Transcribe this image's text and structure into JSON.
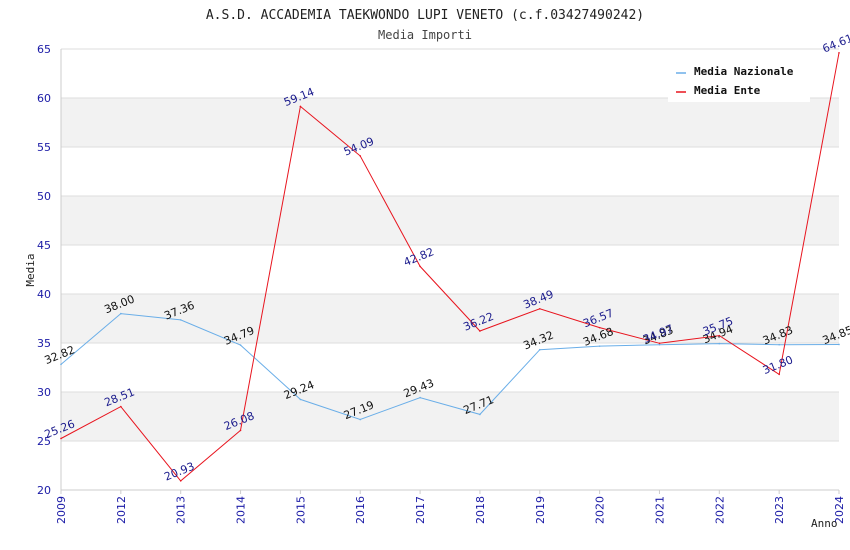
{
  "chart_data": {
    "type": "line",
    "title": "A.S.D. ACCADEMIA TAEKWONDO LUPI VENETO (c.f.03427490242)",
    "subtitle": "Media Importi",
    "xlabel": "Anno",
    "ylabel": "Media",
    "ylim": [
      20,
      65
    ],
    "yticks": [
      "20",
      "25",
      "30",
      "35",
      "40",
      "45",
      "50",
      "55",
      "60",
      "65"
    ],
    "categories": [
      "2009",
      "2012",
      "2013",
      "2014",
      "2015",
      "2016",
      "2017",
      "2018",
      "2019",
      "2020",
      "2021",
      "2022",
      "2023",
      "2024"
    ],
    "grid": "horizontal, alternating bands",
    "legend_position": "top-right",
    "series": [
      {
        "name": "Media Nazionale",
        "color": "#6aaee8",
        "values": [
          32.82,
          38.0,
          37.36,
          34.79,
          29.24,
          27.19,
          29.43,
          27.71,
          34.32,
          34.68,
          34.83,
          34.94,
          34.83,
          34.85
        ],
        "labels": [
          "32.82",
          "38.00",
          "37.36",
          "34.79",
          "29.24",
          "27.19",
          "29.43",
          "27.71",
          "34.32",
          "34.68",
          "34.83",
          "34.94",
          "34.83",
          "34.85"
        ]
      },
      {
        "name": "Media Ente",
        "color": "#e8141e",
        "values": [
          25.26,
          28.51,
          20.93,
          26.08,
          59.14,
          54.09,
          42.82,
          36.22,
          38.49,
          36.57,
          34.97,
          35.75,
          31.8,
          64.61
        ],
        "labels": [
          "25.26",
          "28.51",
          "20.93",
          "26.08",
          "59.14",
          "54.09",
          "42.82",
          "36.22",
          "38.49",
          "36.57",
          "34.97",
          "35.75",
          "31.80",
          "64.61"
        ]
      }
    ]
  }
}
